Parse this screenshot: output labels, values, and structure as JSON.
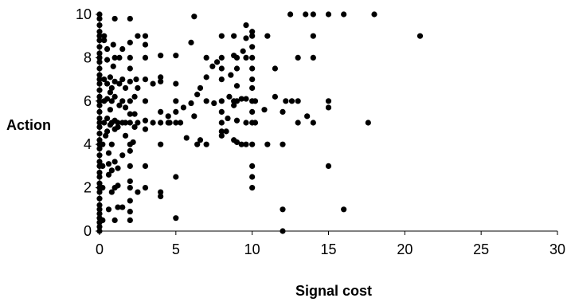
{
  "chart_data": {
    "type": "scatter",
    "title": "",
    "xlabel": "Signal cost",
    "ylabel": "Action",
    "xlim": [
      0,
      30
    ],
    "ylim": [
      0,
      10
    ],
    "xticks": [
      0,
      5,
      10,
      15,
      20,
      25,
      30
    ],
    "yticks": [
      0,
      2,
      4,
      6,
      8,
      10
    ],
    "grid": false,
    "legend": "none",
    "marker_color": "#000000",
    "series": [
      {
        "points": [
          [
            0,
            0
          ],
          [
            0,
            0.2
          ],
          [
            0,
            0.4
          ],
          [
            0,
            0.6
          ],
          [
            0,
            0.8
          ],
          [
            0,
            1
          ],
          [
            0,
            1.2
          ],
          [
            0,
            1.5
          ],
          [
            0,
            1.8
          ],
          [
            0,
            2
          ],
          [
            0,
            2.2
          ],
          [
            0,
            2.5
          ],
          [
            0,
            2.7
          ],
          [
            0,
            3
          ],
          [
            0,
            3.2
          ],
          [
            0,
            3.5
          ],
          [
            0,
            3.8
          ],
          [
            0,
            4
          ],
          [
            0,
            4.2
          ],
          [
            0,
            4.5
          ],
          [
            0,
            4.8
          ],
          [
            0,
            5
          ],
          [
            0,
            5.2
          ],
          [
            0,
            5.5
          ],
          [
            0,
            5.8
          ],
          [
            0,
            6
          ],
          [
            0,
            6.2
          ],
          [
            0,
            6.5
          ],
          [
            0,
            6.8
          ],
          [
            0,
            7
          ],
          [
            0,
            7.2
          ],
          [
            0,
            7.5
          ],
          [
            0,
            7.8
          ],
          [
            0,
            8
          ],
          [
            0,
            8.2
          ],
          [
            0,
            8.5
          ],
          [
            0,
            8.8
          ],
          [
            0,
            9
          ],
          [
            0,
            9.2
          ],
          [
            0,
            9.5
          ],
          [
            0,
            9.8
          ],
          [
            0,
            10
          ],
          [
            0.2,
            0.5
          ],
          [
            0.2,
            2
          ],
          [
            0.2,
            3
          ],
          [
            0.2,
            4
          ],
          [
            0.3,
            5
          ],
          [
            0.3,
            6
          ],
          [
            0.3,
            7
          ],
          [
            0.3,
            8.8
          ],
          [
            0.3,
            9
          ],
          [
            0.4,
            4.4
          ],
          [
            0.5,
            4.6
          ],
          [
            0.5,
            5.2
          ],
          [
            0.5,
            6.1
          ],
          [
            0.5,
            6.8
          ],
          [
            0.5,
            7.9
          ],
          [
            0.5,
            8.4
          ],
          [
            0.6,
            1
          ],
          [
            0.6,
            2.6
          ],
          [
            0.6,
            3.1
          ],
          [
            0.6,
            3.6
          ],
          [
            0.7,
            4.9
          ],
          [
            0.7,
            5.6
          ],
          [
            0.7,
            6.4
          ],
          [
            0.7,
            7.1
          ],
          [
            0.8,
            1.8
          ],
          [
            0.8,
            2.8
          ],
          [
            0.8,
            4
          ],
          [
            0.8,
            5
          ],
          [
            0.8,
            6
          ],
          [
            0.8,
            6.6
          ],
          [
            0.9,
            7.6
          ],
          [
            0.9,
            8.6
          ],
          [
            1,
            0.5
          ],
          [
            1,
            2
          ],
          [
            1,
            3.2
          ],
          [
            1,
            4.7
          ],
          [
            1,
            5.1
          ],
          [
            1,
            6.2
          ],
          [
            1,
            6.9
          ],
          [
            1,
            8
          ],
          [
            1,
            9.8
          ],
          [
            1.2,
            1.1
          ],
          [
            1.2,
            2.1
          ],
          [
            1.2,
            2.9
          ],
          [
            1.2,
            4.8
          ],
          [
            1.2,
            5
          ],
          [
            1.3,
            5.8
          ],
          [
            1.3,
            6.8
          ],
          [
            1.3,
            8
          ],
          [
            1.5,
            1.1
          ],
          [
            1.5,
            3.5
          ],
          [
            1.5,
            5
          ],
          [
            1.5,
            6
          ],
          [
            1.5,
            7
          ],
          [
            1.5,
            8.4
          ],
          [
            1.7,
            4.4
          ],
          [
            1.7,
            5
          ],
          [
            1.7,
            5.7
          ],
          [
            1.7,
            6.6
          ],
          [
            2,
            0.5
          ],
          [
            2,
            0.9
          ],
          [
            2,
            1.4
          ],
          [
            2,
            2
          ],
          [
            2,
            2.3
          ],
          [
            2,
            3
          ],
          [
            2,
            3.7
          ],
          [
            2,
            4
          ],
          [
            2,
            5
          ],
          [
            2,
            5.4
          ],
          [
            2,
            6
          ],
          [
            2,
            6.9
          ],
          [
            2,
            7.5
          ],
          [
            2,
            8
          ],
          [
            2,
            8.7
          ],
          [
            2,
            9.8
          ],
          [
            2.2,
            4.1
          ],
          [
            2.3,
            4.8
          ],
          [
            2.3,
            5.4
          ],
          [
            2.3,
            6.2
          ],
          [
            2.4,
            7
          ],
          [
            2.5,
            1.8
          ],
          [
            2.5,
            5
          ],
          [
            2.5,
            6.6
          ],
          [
            2.5,
            9
          ],
          [
            3,
            2
          ],
          [
            3,
            3
          ],
          [
            3,
            4.7
          ],
          [
            3,
            5.1
          ],
          [
            3,
            6
          ],
          [
            3,
            7
          ],
          [
            3,
            8
          ],
          [
            3,
            8.6
          ],
          [
            3,
            9
          ],
          [
            3.5,
            5
          ],
          [
            3.5,
            6.8
          ],
          [
            4,
            1.6
          ],
          [
            4,
            1.8
          ],
          [
            4,
            4
          ],
          [
            4,
            5
          ],
          [
            4,
            5.5
          ],
          [
            4,
            6.9
          ],
          [
            4,
            7.1
          ],
          [
            4,
            8.1
          ],
          [
            4.5,
            5
          ],
          [
            4.5,
            5.3
          ],
          [
            4.6,
            5
          ],
          [
            5,
            0.6
          ],
          [
            5,
            2.5
          ],
          [
            5,
            5
          ],
          [
            5,
            5.5
          ],
          [
            5,
            6
          ],
          [
            5,
            6.8
          ],
          [
            5,
            8.1
          ],
          [
            5.3,
            5
          ],
          [
            5.5,
            5.7
          ],
          [
            5.7,
            4.3
          ],
          [
            6,
            5.9
          ],
          [
            6,
            8.7
          ],
          [
            6.2,
            9.9
          ],
          [
            6.2,
            5.3
          ],
          [
            6.4,
            4
          ],
          [
            6.4,
            6.3
          ],
          [
            6.6,
            4.2
          ],
          [
            6.6,
            6.6
          ],
          [
            7,
            4
          ],
          [
            7,
            6
          ],
          [
            7,
            7.1
          ],
          [
            7,
            8
          ],
          [
            7.4,
            7.6
          ],
          [
            7.5,
            5.9
          ],
          [
            7.7,
            7.8
          ],
          [
            8,
            4.4
          ],
          [
            8,
            4.6
          ],
          [
            8,
            5
          ],
          [
            8,
            5.5
          ],
          [
            8,
            6
          ],
          [
            8,
            7
          ],
          [
            8,
            7.5
          ],
          [
            8,
            8
          ],
          [
            8,
            9
          ],
          [
            8.3,
            4.6
          ],
          [
            8.4,
            5.2
          ],
          [
            8.5,
            6.2
          ],
          [
            8.6,
            7.2
          ],
          [
            8.8,
            4.2
          ],
          [
            8.8,
            5.8
          ],
          [
            8.8,
            6
          ],
          [
            8.8,
            8.1
          ],
          [
            8.8,
            9
          ],
          [
            9,
            4.1
          ],
          [
            9,
            5.1
          ],
          [
            9,
            6
          ],
          [
            9,
            6.7
          ],
          [
            9,
            7.5
          ],
          [
            9,
            8
          ],
          [
            9.3,
            4
          ],
          [
            9.3,
            6.1
          ],
          [
            9.4,
            8.3
          ],
          [
            9.6,
            4
          ],
          [
            9.6,
            5
          ],
          [
            9.6,
            6.1
          ],
          [
            9.6,
            8
          ],
          [
            9.6,
            8.9
          ],
          [
            9.6,
            9.5
          ],
          [
            10,
            2
          ],
          [
            10,
            2.5
          ],
          [
            10,
            3
          ],
          [
            10,
            4
          ],
          [
            10,
            5
          ],
          [
            10,
            5.5
          ],
          [
            10,
            6
          ],
          [
            10,
            6.6
          ],
          [
            10,
            7
          ],
          [
            10,
            7.5
          ],
          [
            10,
            8
          ],
          [
            10,
            8.5
          ],
          [
            10,
            9
          ],
          [
            10,
            9.2
          ],
          [
            10.2,
            5
          ],
          [
            10.2,
            6
          ],
          [
            10.8,
            5.6
          ],
          [
            11,
            4
          ],
          [
            11,
            9
          ],
          [
            11.5,
            6.2
          ],
          [
            11.5,
            7.5
          ],
          [
            12,
            0
          ],
          [
            12,
            1
          ],
          [
            12,
            4
          ],
          [
            12,
            5.5
          ],
          [
            12.2,
            6
          ],
          [
            12.5,
            10
          ],
          [
            12.6,
            6
          ],
          [
            13,
            5
          ],
          [
            13,
            6
          ],
          [
            13,
            8
          ],
          [
            13.5,
            10
          ],
          [
            13.6,
            5.3
          ],
          [
            14,
            5
          ],
          [
            14,
            8
          ],
          [
            14,
            9
          ],
          [
            14,
            10
          ],
          [
            15,
            3
          ],
          [
            15,
            5.7
          ],
          [
            15,
            6
          ],
          [
            15,
            10
          ],
          [
            16,
            1
          ],
          [
            16,
            10
          ],
          [
            17.6,
            5
          ],
          [
            18,
            10
          ],
          [
            21,
            9
          ]
        ]
      }
    ]
  }
}
